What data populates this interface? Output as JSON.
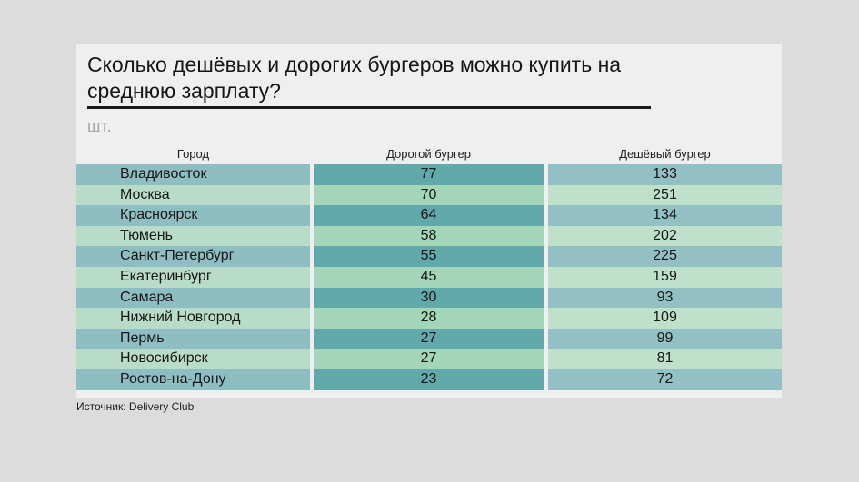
{
  "title": "Сколько дешёвых и дорогих бургеров можно купить на среднюю зарплату?",
  "unit": "шт.",
  "source": "Источник: Delivery Club",
  "colors": {
    "band_dark_city": "#8ebdc2",
    "band_light_city": "#b8dcc7",
    "band_dark_expensive": "#62a9ab",
    "band_light_expensive": "#a3d6b8",
    "band_dark_cheap": "#93c0c5",
    "band_light_cheap": "#bfe0cb"
  },
  "chart_data": {
    "type": "table",
    "title": "Сколько дешёвых и дорогих бургеров можно купить на среднюю зарплату?",
    "unit": "шт.",
    "columns": [
      "Город",
      "Дорогой бургер",
      "Дешёвый бургер"
    ],
    "rows": [
      {
        "city": "Владивосток",
        "expensive": 77,
        "cheap": 133
      },
      {
        "city": "Москва",
        "expensive": 70,
        "cheap": 251
      },
      {
        "city": "Красноярск",
        "expensive": 64,
        "cheap": 134
      },
      {
        "city": "Тюмень",
        "expensive": 58,
        "cheap": 202
      },
      {
        "city": "Санкт-Петербург",
        "expensive": 55,
        "cheap": 225
      },
      {
        "city": "Екатеринбург",
        "expensive": 45,
        "cheap": 159
      },
      {
        "city": "Самара",
        "expensive": 30,
        "cheap": 93
      },
      {
        "city": "Нижний Новгород",
        "expensive": 28,
        "cheap": 109
      },
      {
        "city": "Пермь",
        "expensive": 27,
        "cheap": 99
      },
      {
        "city": "Новосибирск",
        "expensive": 27,
        "cheap": 81
      },
      {
        "city": "Ростов-на-Дону",
        "expensive": 23,
        "cheap": 72
      }
    ]
  }
}
